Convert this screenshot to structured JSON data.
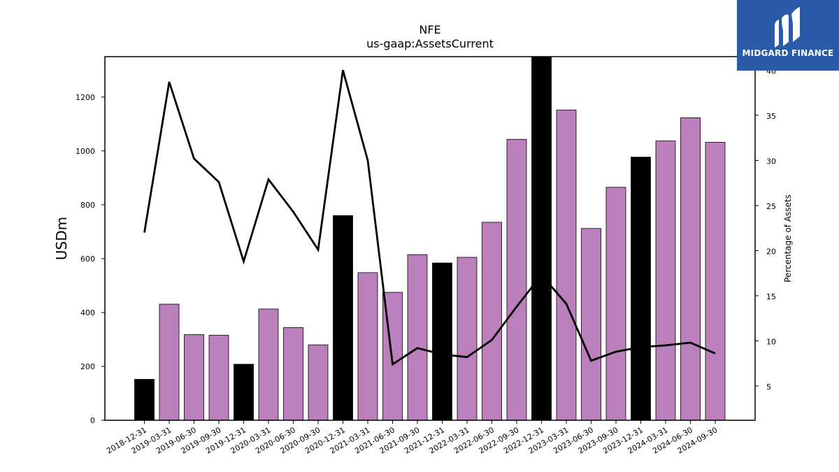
{
  "chart_data": {
    "type": "bar",
    "title": "NFE",
    "subtitle": "us-gaap:AssetsCurrent",
    "ylabel": "USDm",
    "y2label": "Percentage of Assets",
    "ylim": [
      0,
      1350
    ],
    "y2lim": [
      1.2,
      41.5
    ],
    "yticks": [
      0,
      200,
      400,
      600,
      800,
      1000,
      1200
    ],
    "y2ticks": [
      5,
      10,
      15,
      20,
      25,
      30,
      35,
      40
    ],
    "categories": [
      "2018-12-31",
      "2019-03-31",
      "2019-06-30",
      "2019-09-30",
      "2019-12-31",
      "2020-03-31",
      "2020-06-30",
      "2020-09-30",
      "2020-12-31",
      "2021-03-31",
      "2021-06-30",
      "2021-09-30",
      "2021-12-31",
      "2022-03-31",
      "2022-06-30",
      "2022-09-30",
      "2022-12-31",
      "2023-03-31",
      "2023-06-30",
      "2023-09-30",
      "2023-12-31",
      "2024-03-31",
      "2024-06-30",
      "2024-09-30"
    ],
    "series": [
      {
        "kind": "bar",
        "values": [
          152,
          431,
          318,
          316,
          208,
          413,
          344,
          280,
          760,
          548,
          475,
          615,
          584,
          605,
          735,
          1043,
          1352,
          1152,
          712,
          865,
          977,
          1037,
          1123,
          1032
        ],
        "highlight": [
          true,
          false,
          false,
          false,
          true,
          false,
          false,
          false,
          true,
          false,
          false,
          false,
          true,
          false,
          false,
          false,
          true,
          false,
          false,
          false,
          true,
          false,
          false,
          false
        ]
      },
      {
        "kind": "line",
        "axis": "right",
        "values": [
          22.0,
          38.7,
          30.2,
          27.6,
          18.8,
          27.9,
          24.3,
          20.1,
          40.0,
          30.0,
          7.4,
          9.2,
          8.5,
          8.2,
          10.1,
          13.8,
          17.3,
          14.1,
          7.8,
          8.8,
          9.3,
          9.5,
          9.8,
          8.6
        ]
      }
    ],
    "colors": {
      "bar": "#bb80bc",
      "bar_highlight": "#000000",
      "line": "#000000",
      "bar_edge": "#000000"
    }
  },
  "logo": {
    "text": "MIDGARD FINANCE",
    "background": "#2b5aa8"
  }
}
